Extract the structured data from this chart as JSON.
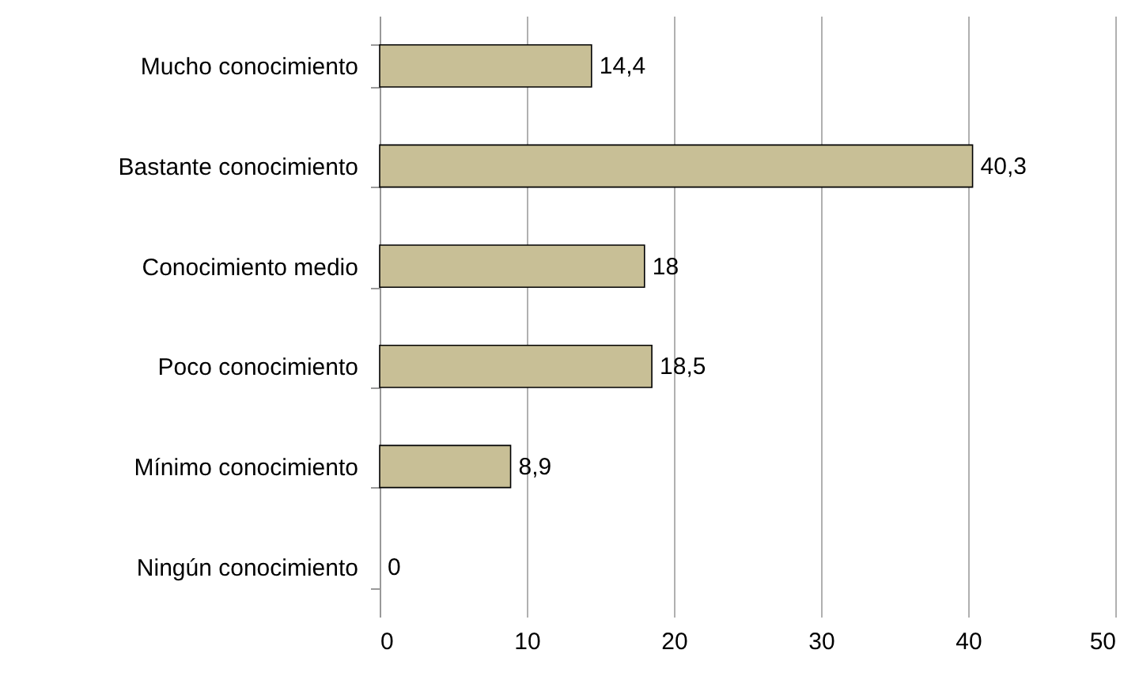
{
  "chart_data": {
    "type": "bar",
    "orientation": "horizontal",
    "categories": [
      "Mucho conocimiento",
      "Bastante conocimiento",
      "Conocimiento medio",
      "Poco conocimiento",
      "Mínimo conocimiento",
      "Ningún conocimiento"
    ],
    "values": [
      14.4,
      40.3,
      18,
      18.5,
      8.9,
      0
    ],
    "value_labels": [
      "14,4",
      "40,3",
      "18",
      "18,5",
      "8,9",
      "0"
    ],
    "color": "#c8bf96",
    "xlim": [
      0,
      50
    ],
    "xticks": [
      0,
      10,
      20,
      30,
      40,
      50
    ],
    "grid": "x"
  }
}
